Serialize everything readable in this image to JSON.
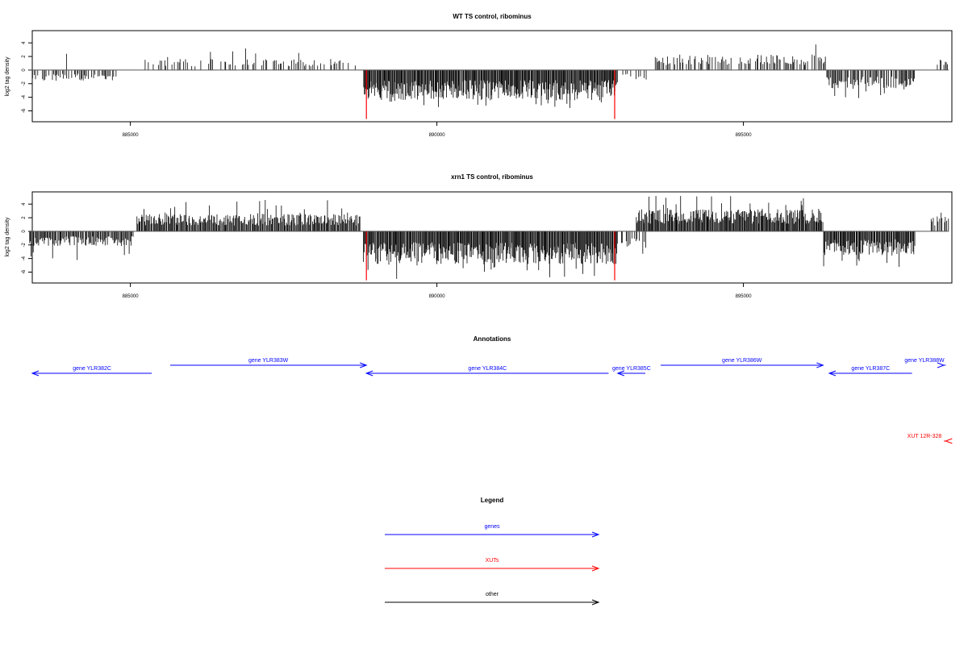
{
  "colors": {
    "axis": "#000000",
    "bars": "#000000",
    "marker": "#ff0000",
    "genes": "#0000ff",
    "xuts": "#ff0000",
    "other": "#000000"
  },
  "chart_data": [
    {
      "type": "bar",
      "title": "WT TS control, ribominus",
      "ylabel": "log2 tag density",
      "xlim": [
        883400,
        898400
      ],
      "ylim": [
        -7.6,
        5.8
      ],
      "xticks": [
        885000,
        890000,
        895000
      ],
      "xtick_labels": [
        "885000",
        "890000",
        "895000"
      ],
      "yticks": [
        -6,
        -4,
        -2,
        0,
        2,
        4
      ],
      "ytick_labels": [
        "-6",
        "-4",
        "-2",
        "0",
        "2",
        "4"
      ],
      "baseline": {
        "from": 883350,
        "to": 898350,
        "y": 0
      },
      "markers": [
        {
          "x": 888850,
          "y": -7.2
        },
        {
          "x": 892900,
          "y": -7.2
        }
      ],
      "density_profile": {
        "segments": [
          {
            "from": 883400,
            "to": 884800,
            "sign": -1,
            "typical": 1.2,
            "max": 2.4,
            "density": 0.6
          },
          {
            "from": 883950,
            "to": 883960,
            "sign": 1,
            "typical": 2.3,
            "max": 2.4,
            "density": 1.0
          },
          {
            "from": 885200,
            "to": 888700,
            "sign": 1,
            "typical": 1.2,
            "max": 3.4,
            "density": 0.45
          },
          {
            "from": 888800,
            "to": 892950,
            "sign": -1,
            "typical": 3.3,
            "max": 5.6,
            "density": 1.0
          },
          {
            "from": 893000,
            "to": 893450,
            "sign": -1,
            "typical": 1.2,
            "max": 2.1,
            "density": 0.4
          },
          {
            "from": 893550,
            "to": 896350,
            "sign": 1,
            "typical": 1.7,
            "max": 4.1,
            "density": 0.6
          },
          {
            "from": 896350,
            "to": 897800,
            "sign": -1,
            "typical": 2.1,
            "max": 4.2,
            "density": 0.75
          },
          {
            "from": 898100,
            "to": 898350,
            "sign": 1,
            "typical": 1.7,
            "max": 2.9,
            "density": 0.5
          }
        ]
      }
    },
    {
      "type": "bar",
      "title": "xrn1 TS control, ribominus",
      "ylabel": "log2 tag density",
      "xlim": [
        883400,
        898400
      ],
      "ylim": [
        -7.6,
        5.8
      ],
      "xticks": [
        885000,
        890000,
        895000
      ],
      "xtick_labels": [
        "885000",
        "890000",
        "895000"
      ],
      "yticks": [
        -6,
        -4,
        -2,
        0,
        2,
        4
      ],
      "ytick_labels": [
        "-6",
        "-4",
        "-2",
        "0",
        "2",
        "4"
      ],
      "baseline": {
        "from": 883350,
        "to": 898350,
        "y": 0
      },
      "markers": [
        {
          "x": 888850,
          "y": -7.2
        },
        {
          "x": 892900,
          "y": -7.2
        }
      ],
      "density_profile": {
        "segments": [
          {
            "from": 883350,
            "to": 885050,
            "sign": -1,
            "typical": 1.6,
            "max": 4.5,
            "density": 0.8
          },
          {
            "from": 885100,
            "to": 888750,
            "sign": 1,
            "typical": 1.9,
            "max": 4.8,
            "density": 0.85
          },
          {
            "from": 888800,
            "to": 892950,
            "sign": -1,
            "typical": 3.6,
            "max": 7.0,
            "density": 1.0
          },
          {
            "from": 893000,
            "to": 893450,
            "sign": -1,
            "typical": 1.8,
            "max": 3.8,
            "density": 0.6
          },
          {
            "from": 893250,
            "to": 896300,
            "sign": 1,
            "typical": 2.4,
            "max": 5.4,
            "density": 0.95
          },
          {
            "from": 896300,
            "to": 897800,
            "sign": -1,
            "typical": 2.6,
            "max": 5.8,
            "density": 0.95
          },
          {
            "from": 898050,
            "to": 898350,
            "sign": 1,
            "typical": 1.7,
            "max": 2.8,
            "density": 0.6
          }
        ]
      }
    }
  ],
  "annotations": {
    "title": "Annotations",
    "features": [
      {
        "label": "gene YLR382C",
        "kind": "gene",
        "start": 883350,
        "end": 885350,
        "strand": "-",
        "row": 1
      },
      {
        "label": "gene YLR383W",
        "kind": "gene",
        "start": 885650,
        "end": 888850,
        "strand": "+",
        "row": 0
      },
      {
        "label": "gene YLR384C",
        "kind": "gene",
        "start": 888850,
        "end": 892800,
        "strand": "-",
        "row": 1
      },
      {
        "label": "gene YLR385C",
        "kind": "gene",
        "start": 892950,
        "end": 893400,
        "strand": "-",
        "row": 1
      },
      {
        "label": "gene YLR386W",
        "kind": "gene",
        "start": 893650,
        "end": 896300,
        "strand": "+",
        "row": 0
      },
      {
        "label": "gene YLR387C",
        "kind": "gene",
        "start": 896400,
        "end": 897750,
        "strand": "-",
        "row": 1
      },
      {
        "label": "gene YLR388W",
        "kind": "gene",
        "start": 898300,
        "end": 898950,
        "strand": "+",
        "row": 0
      },
      {
        "label": "XUT 12R-328",
        "kind": "xut",
        "start": 898300,
        "end": 898950,
        "strand": "-",
        "row": 2
      }
    ]
  },
  "legend": {
    "title": "Legend",
    "items": [
      {
        "label": "genes",
        "kind": "genes"
      },
      {
        "label": "XUTs",
        "kind": "xuts"
      },
      {
        "label": "other",
        "kind": "other"
      }
    ]
  }
}
